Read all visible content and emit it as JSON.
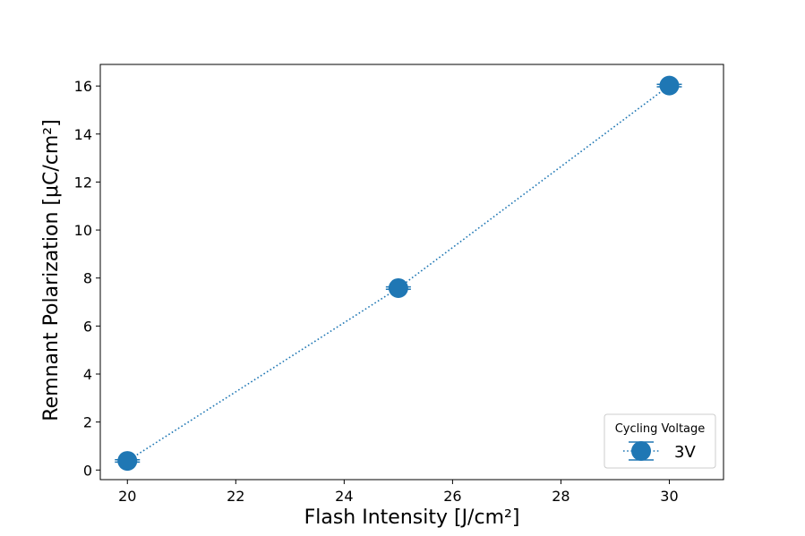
{
  "chart_data": {
    "type": "line",
    "title": "",
    "xlabel": "Flash Intensity [J/cm²]",
    "ylabel": "Remnant Polarization [μC/cm²]",
    "xlim": [
      19.5,
      31.0
    ],
    "ylim": [
      -0.4,
      16.9
    ],
    "xticks": [
      20,
      22,
      24,
      26,
      28,
      30
    ],
    "yticks": [
      0,
      2,
      4,
      6,
      8,
      10,
      12,
      14,
      16
    ],
    "grid": false,
    "legend": {
      "title": "Cycling Voltage",
      "placement": "lower-right"
    },
    "series": [
      {
        "name": "3V",
        "color": "#1f77b4",
        "line_style": "dotted",
        "marker": "circle",
        "error_bars": true,
        "x": [
          20,
          25,
          30
        ],
        "y": [
          0.38,
          7.58,
          16.02
        ],
        "yerr": [
          0.05,
          0.05,
          0.05
        ]
      }
    ]
  }
}
